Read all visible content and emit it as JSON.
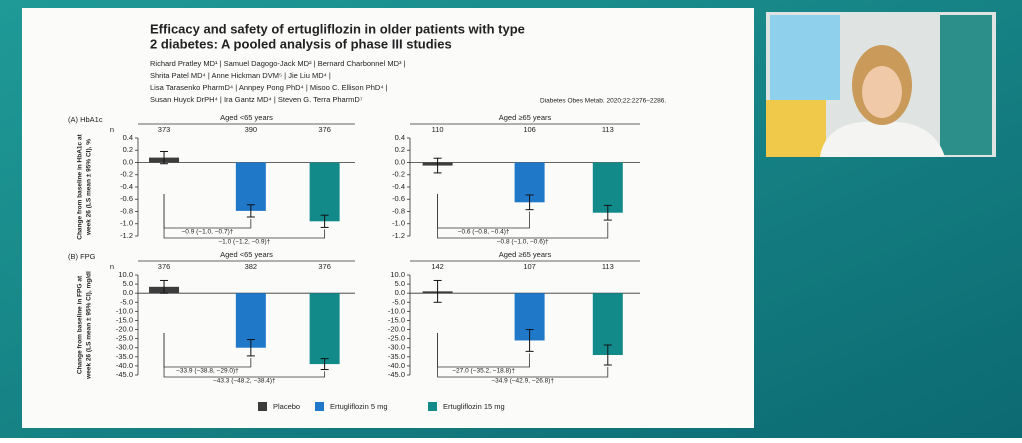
{
  "header": {
    "title": [
      "Efficacy and safety of ertugliflozin in older patients with type",
      "2 diabetes: A pooled analysis of phase III studies"
    ],
    "authors": [
      "Richard Pratley MD¹  |  Samuel Dagogo-Jack MD²  |  Bernard Charbonnel MD³  |",
      "Shrita Patel MD⁴  |  Anne Hickman DVM⁵  |  Jie Liu MD⁴  |",
      "Lisa Tarasenko PharmD⁴  |  Annpey Pong PhD⁴  |  Misoo C. Ellison PhD⁴  |",
      "Susan Huyck DrPH⁴  |  Ira Gantz MD⁴  |  Steven G. Terra PharmD⁷"
    ],
    "citation": "Diabetes Obes Metab. 2020;22:2276–2286."
  },
  "legend": [
    {
      "name": "Placebo",
      "color": "#3c3c3c"
    },
    {
      "name": "Ertugliflozin 5 mg",
      "color": "#1f78c8"
    },
    {
      "name": "Ertugliflozin 15 mg",
      "color": "#138a8a"
    }
  ],
  "chart_data": [
    {
      "type": "bar",
      "panel_label": "(A) HbA1c",
      "group_title": "Aged <65 years",
      "n_label": "n",
      "n": [
        373,
        390,
        376
      ],
      "ylabel": [
        "Change from baseline in HbA1c at",
        "week 26 (LS mean ± 95% CI), %"
      ],
      "values": [
        0.08,
        -0.79,
        -0.96
      ],
      "errors": [
        0.1,
        0.1,
        0.1
      ],
      "comparisons": [
        "−0.9 (−1.0, −0.7)†",
        "−1.0 (−1.2, −0.9)†"
      ],
      "ylim": [
        -1.2,
        0.4
      ],
      "yticks": [
        0.4,
        0.2,
        {
          "value": 0,
          "label": "0.0"
        },
        -0.2,
        -0.4,
        -0.6,
        -0.8,
        {
          "value": -1,
          "label": "-1.0"
        },
        -1.2
      ]
    },
    {
      "type": "bar",
      "group_title": "Aged ≥65 years",
      "n": [
        110,
        106,
        113
      ],
      "values": [
        -0.05,
        -0.65,
        -0.82
      ],
      "errors": [
        0.12,
        0.12,
        0.12
      ],
      "comparisons": [
        "−0.6 (−0.8, −0.4)†",
        "−0.8 (−1.0, −0.6)†"
      ],
      "ylim": [
        -1.2,
        0.4
      ],
      "yticks": [
        0.4,
        0.2,
        {
          "value": 0,
          "label": "0.0"
        },
        -0.2,
        -0.4,
        -0.6,
        -0.8,
        {
          "value": -1,
          "label": "-1.0"
        },
        -1.2
      ]
    },
    {
      "type": "bar",
      "panel_label": "(B) FPG",
      "group_title": "Aged <65 years",
      "n_label": "n",
      "n": [
        376,
        382,
        376
      ],
      "ylabel": [
        "Change from baseline in FPG at",
        "week 26 (LS mean ± 95% CI), mg/dl"
      ],
      "values": [
        3.5,
        -30,
        -39
      ],
      "errors": [
        3.5,
        4.5,
        3
      ],
      "comparisons": [
        "−33.9 (−38.8, −29.0)†",
        "−43.3 (−48.2, −38.4)†"
      ],
      "ylim": [
        -45,
        10
      ],
      "yticks": [
        {
          "value": 10,
          "label": "10.0"
        },
        {
          "value": 5,
          "label": "5.0"
        },
        {
          "value": 0,
          "label": "0.0"
        },
        {
          "value": -5,
          "label": "-5.0"
        },
        {
          "value": -10,
          "label": "-10.0"
        },
        {
          "value": -15,
          "label": "-15.0"
        },
        {
          "value": -20,
          "label": "-20.0"
        },
        {
          "value": -25,
          "label": "-25.0"
        },
        {
          "value": -30,
          "label": "-30.0"
        },
        {
          "value": -35,
          "label": "-35.0"
        },
        {
          "value": -40,
          "label": "-40.0"
        },
        {
          "value": -45,
          "label": "-45.0"
        }
      ]
    },
    {
      "type": "bar",
      "group_title": "Aged ≥65 years",
      "n": [
        142,
        107,
        113
      ],
      "values": [
        1,
        -26,
        -34
      ],
      "errors": [
        6,
        6,
        5.5
      ],
      "comparisons": [
        "−27.0 (−35.2, −18.8)†",
        "−34.9 (−42.9, −26.8)†"
      ],
      "ylim": [
        -45,
        10
      ],
      "yticks": [
        {
          "value": 10,
          "label": "10.0"
        },
        {
          "value": 5,
          "label": "5.0"
        },
        {
          "value": 0,
          "label": "0.0"
        },
        {
          "value": -5,
          "label": "-5.0"
        },
        {
          "value": -10,
          "label": "-10.0"
        },
        {
          "value": -15,
          "label": "-15.0"
        },
        {
          "value": -20,
          "label": "-20.0"
        },
        {
          "value": -25,
          "label": "-25.0"
        },
        {
          "value": -30,
          "label": "-30.0"
        },
        {
          "value": -35,
          "label": "-35.0"
        },
        {
          "value": -40,
          "label": "-40.0"
        },
        {
          "value": -45,
          "label": "-45.0"
        }
      ]
    }
  ]
}
